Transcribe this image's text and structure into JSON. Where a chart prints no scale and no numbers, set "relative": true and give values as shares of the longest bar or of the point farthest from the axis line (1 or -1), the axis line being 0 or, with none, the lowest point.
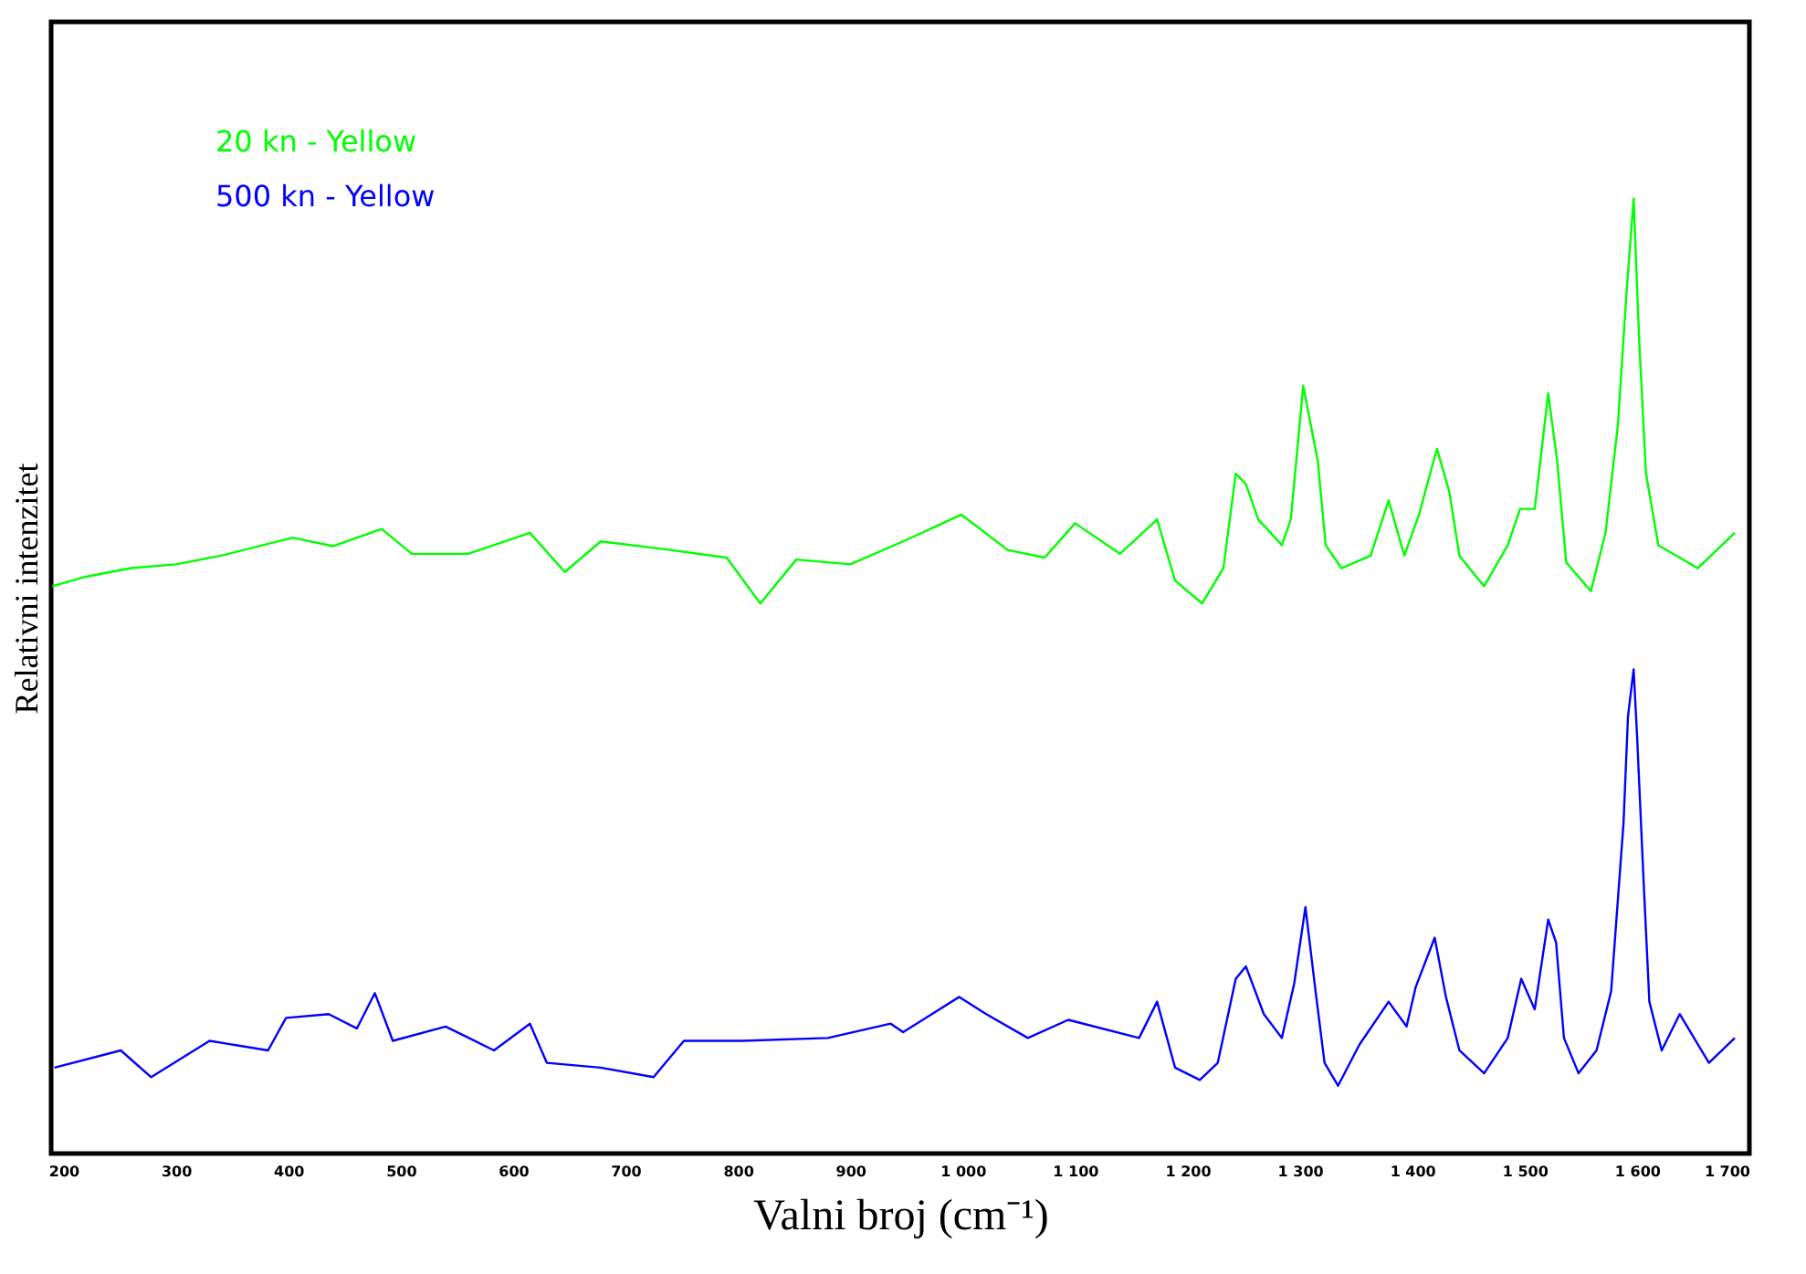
{
  "chart_data": {
    "type": "line",
    "relative": true,
    "xlabel": "Valni broj (cm⁻¹)",
    "ylabel": "Relativni intenzitet",
    "xlim": [
      189,
      1700
    ],
    "xticks": [
      200,
      300,
      400,
      500,
      600,
      700,
      800,
      900,
      {
        "value": 1000,
        "label": "1 000"
      },
      {
        "value": 1100,
        "label": "1 100"
      },
      {
        "value": 1200,
        "label": "1 200"
      },
      {
        "value": 1300,
        "label": "1 300"
      },
      {
        "value": 1400,
        "label": "1 400"
      },
      {
        "value": 1500,
        "label": "1 500"
      },
      {
        "value": 1600,
        "label": "1 600"
      },
      {
        "value": 1700,
        "label": "1 700"
      }
    ],
    "tick_labels": "x",
    "grid": false,
    "legend": "top left",
    "marker": "none",
    "line_style": "solid",
    "series": [
      {
        "name": "20 kn - Yellow",
        "color": "#00ff00",
        "x": [
          190,
          220,
          260,
          300,
          340,
          404,
          440,
          483,
          510,
          560,
          615,
          646,
          678,
          740,
          790,
          820,
          852,
          900,
          947,
          999,
          1040,
          1073,
          1100,
          1140,
          1173,
          1189,
          1213,
          1232,
          1243,
          1252,
          1263,
          1284,
          1292,
          1303,
          1316,
          1323,
          1337,
          1363,
          1379,
          1393,
          1406,
          1422,
          1433,
          1442,
          1464,
          1485,
          1496,
          1509,
          1521,
          1529,
          1537,
          1559,
          1572,
          1583,
          1591,
          1597,
          1602,
          1608,
          1619,
          1654,
          1687
        ],
        "values": [
          0.594,
          0.604,
          0.613,
          0.617,
          0.626,
          0.645,
          0.636,
          0.654,
          0.628,
          0.628,
          0.65,
          0.609,
          0.641,
          0.632,
          0.624,
          0.576,
          0.622,
          0.617,
          0.641,
          0.669,
          0.632,
          0.624,
          0.66,
          0.628,
          0.664,
          0.6,
          0.576,
          0.613,
          0.712,
          0.701,
          0.664,
          0.637,
          0.664,
          0.804,
          0.725,
          0.637,
          0.613,
          0.626,
          0.684,
          0.626,
          0.669,
          0.738,
          0.693,
          0.626,
          0.594,
          0.637,
          0.675,
          0.675,
          0.796,
          0.725,
          0.619,
          0.589,
          0.65,
          0.763,
          0.907,
          1.0,
          0.85,
          0.712,
          0.637,
          0.613,
          0.65
        ]
      },
      {
        "name": "500 kn - Yellow",
        "color": "#0000ff",
        "x": [
          192,
          251,
          278,
          330,
          382,
          398,
          436,
          461,
          477,
          493,
          540,
          583,
          615,
          630,
          678,
          725,
          752,
          804,
          880,
          936,
          947,
          997,
          1021,
          1058,
          1094,
          1157,
          1173,
          1189,
          1211,
          1227,
          1243,
          1252,
          1268,
          1284,
          1295,
          1305,
          1314,
          1322,
          1334,
          1353,
          1379,
          1395,
          1403,
          1420,
          1430,
          1442,
          1464,
          1485,
          1497,
          1509,
          1521,
          1528,
          1535,
          1548,
          1564,
          1577,
          1588,
          1592,
          1597,
          1600,
          1606,
          1611,
          1622,
          1638,
          1664,
          1687
        ],
        "values": [
          0.09,
          0.108,
          0.08,
          0.118,
          0.108,
          0.142,
          0.146,
          0.131,
          0.168,
          0.118,
          0.133,
          0.108,
          0.136,
          0.095,
          0.09,
          0.08,
          0.118,
          0.118,
          0.121,
          0.136,
          0.127,
          0.164,
          0.146,
          0.121,
          0.14,
          0.121,
          0.159,
          0.09,
          0.077,
          0.095,
          0.183,
          0.196,
          0.146,
          0.121,
          0.178,
          0.258,
          0.17,
          0.095,
          0.071,
          0.114,
          0.159,
          0.133,
          0.174,
          0.226,
          0.164,
          0.108,
          0.084,
          0.121,
          0.183,
          0.151,
          0.245,
          0.221,
          0.121,
          0.084,
          0.108,
          0.17,
          0.346,
          0.458,
          0.507,
          0.439,
          0.282,
          0.159,
          0.108,
          0.146,
          0.095,
          0.121
        ]
      }
    ]
  }
}
